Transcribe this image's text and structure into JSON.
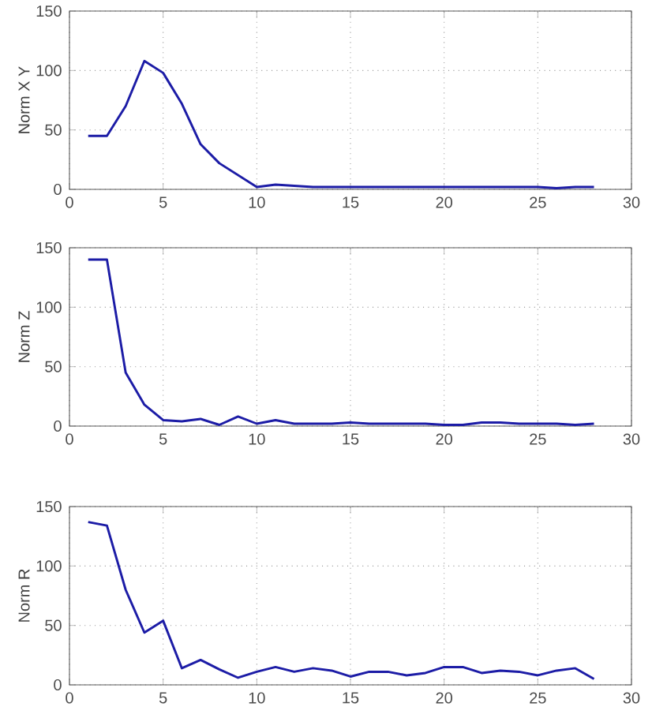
{
  "chart_data": [
    {
      "type": "line",
      "ylabel": "Norm X Y",
      "x": [
        1,
        2,
        3,
        4,
        5,
        6,
        7,
        8,
        9,
        10,
        11,
        12,
        13,
        14,
        15,
        16,
        17,
        18,
        19,
        20,
        21,
        22,
        23,
        24,
        25,
        26,
        27,
        28
      ],
      "values": [
        45,
        45,
        70,
        108,
        98,
        72,
        38,
        22,
        12,
        2,
        4,
        3,
        2,
        2,
        2,
        2,
        2,
        2,
        2,
        2,
        2,
        2,
        2,
        2,
        2,
        1,
        2,
        2
      ],
      "color": "#1c1ca6",
      "xlim": [
        0,
        30
      ],
      "xticks": [
        0,
        5,
        10,
        15,
        20,
        25,
        30
      ],
      "ylim": [
        0,
        150
      ],
      "yticks": [
        0,
        50,
        100,
        150
      ],
      "grid": true,
      "line_style": "solid"
    },
    {
      "type": "line",
      "ylabel": "Norm Z",
      "x": [
        1,
        2,
        3,
        4,
        5,
        6,
        7,
        8,
        9,
        10,
        11,
        12,
        13,
        14,
        15,
        16,
        17,
        18,
        19,
        20,
        21,
        22,
        23,
        24,
        25,
        26,
        27,
        28
      ],
      "values": [
        140,
        140,
        45,
        18,
        5,
        4,
        6,
        1,
        8,
        2,
        5,
        2,
        2,
        2,
        3,
        2,
        2,
        2,
        2,
        1,
        1,
        3,
        3,
        2,
        2,
        2,
        1,
        2
      ],
      "color": "#1c1ca6",
      "xlim": [
        0,
        30
      ],
      "xticks": [
        0,
        5,
        10,
        15,
        20,
        25,
        30
      ],
      "ylim": [
        0,
        150
      ],
      "yticks": [
        0,
        50,
        100,
        150
      ],
      "grid": true,
      "line_style": "solid"
    },
    {
      "type": "line",
      "ylabel": "Norm R",
      "x": [
        1,
        2,
        3,
        4,
        5,
        6,
        7,
        8,
        9,
        10,
        11,
        12,
        13,
        14,
        15,
        16,
        17,
        18,
        19,
        20,
        21,
        22,
        23,
        24,
        25,
        26,
        27,
        28
      ],
      "values": [
        137,
        134,
        80,
        44,
        54,
        14,
        21,
        13,
        6,
        11,
        15,
        11,
        14,
        12,
        7,
        11,
        11,
        8,
        10,
        15,
        15,
        10,
        12,
        11,
        8,
        12,
        14,
        5
      ],
      "color": "#1c1ca6",
      "xlim": [
        0,
        30
      ],
      "xticks": [
        0,
        5,
        10,
        15,
        20,
        25,
        30
      ],
      "ylim": [
        0,
        150
      ],
      "yticks": [
        0,
        50,
        100,
        150
      ],
      "grid": true,
      "line_style": "solid"
    }
  ]
}
